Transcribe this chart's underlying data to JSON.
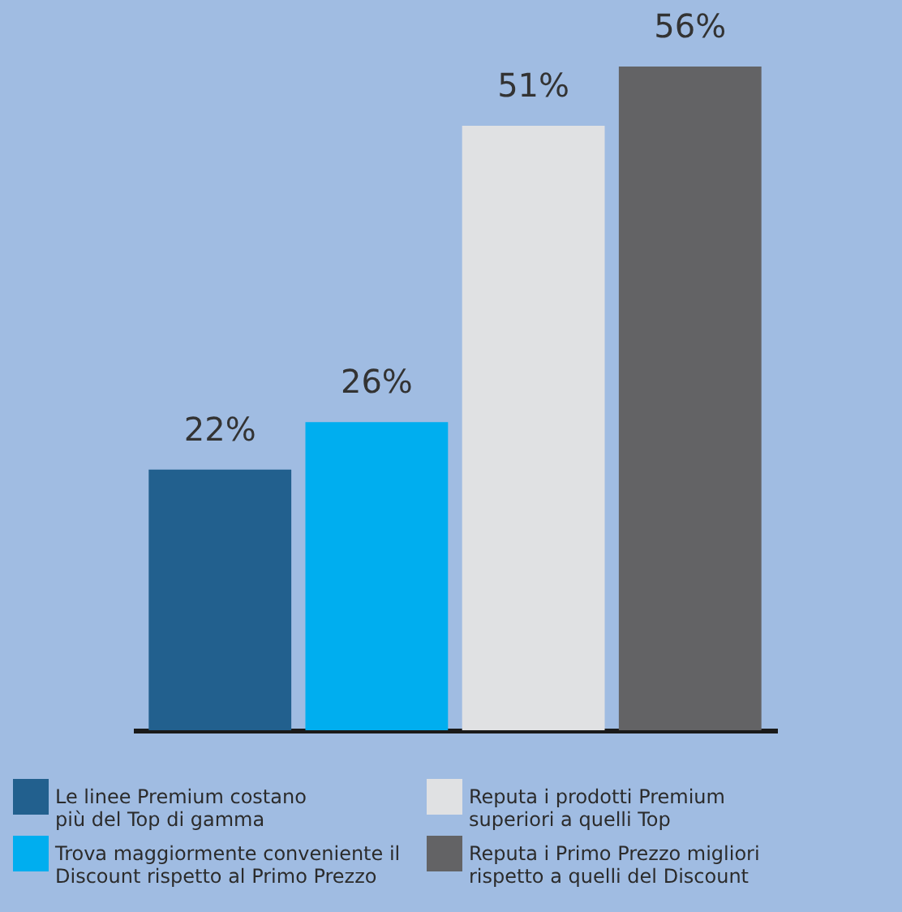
{
  "chart_data": {
    "type": "bar",
    "categories": [
      null,
      null,
      null,
      null
    ],
    "series": [
      {
        "name": "Le linee Premium costano più del Top di gamma",
        "color": "#22608e",
        "values": [
          22,
          null,
          null,
          null
        ],
        "value_labels": [
          "22%",
          null,
          null,
          null
        ]
      },
      {
        "name": "Trova maggiormente conveniente il Discount rispetto al Primo Prezzo",
        "color": "#00aeef",
        "values": [
          null,
          26,
          null,
          null
        ],
        "value_labels": [
          null,
          "26%",
          null,
          null
        ]
      },
      {
        "name": "Reputa i prodotti Premium superiori a quelli Top",
        "color": "#e0e1e3",
        "values": [
          null,
          null,
          51,
          null
        ],
        "value_labels": [
          null,
          null,
          "51%",
          null
        ]
      },
      {
        "name": "Reputa i Primo Prezzo migliori rispetto a quelli del Discount",
        "color": "#636365",
        "values": [
          null,
          null,
          null,
          56
        ],
        "value_labels": [
          null,
          null,
          null,
          "56%"
        ]
      }
    ],
    "stacked": true,
    "legend": "bottom",
    "grid": false
  }
}
